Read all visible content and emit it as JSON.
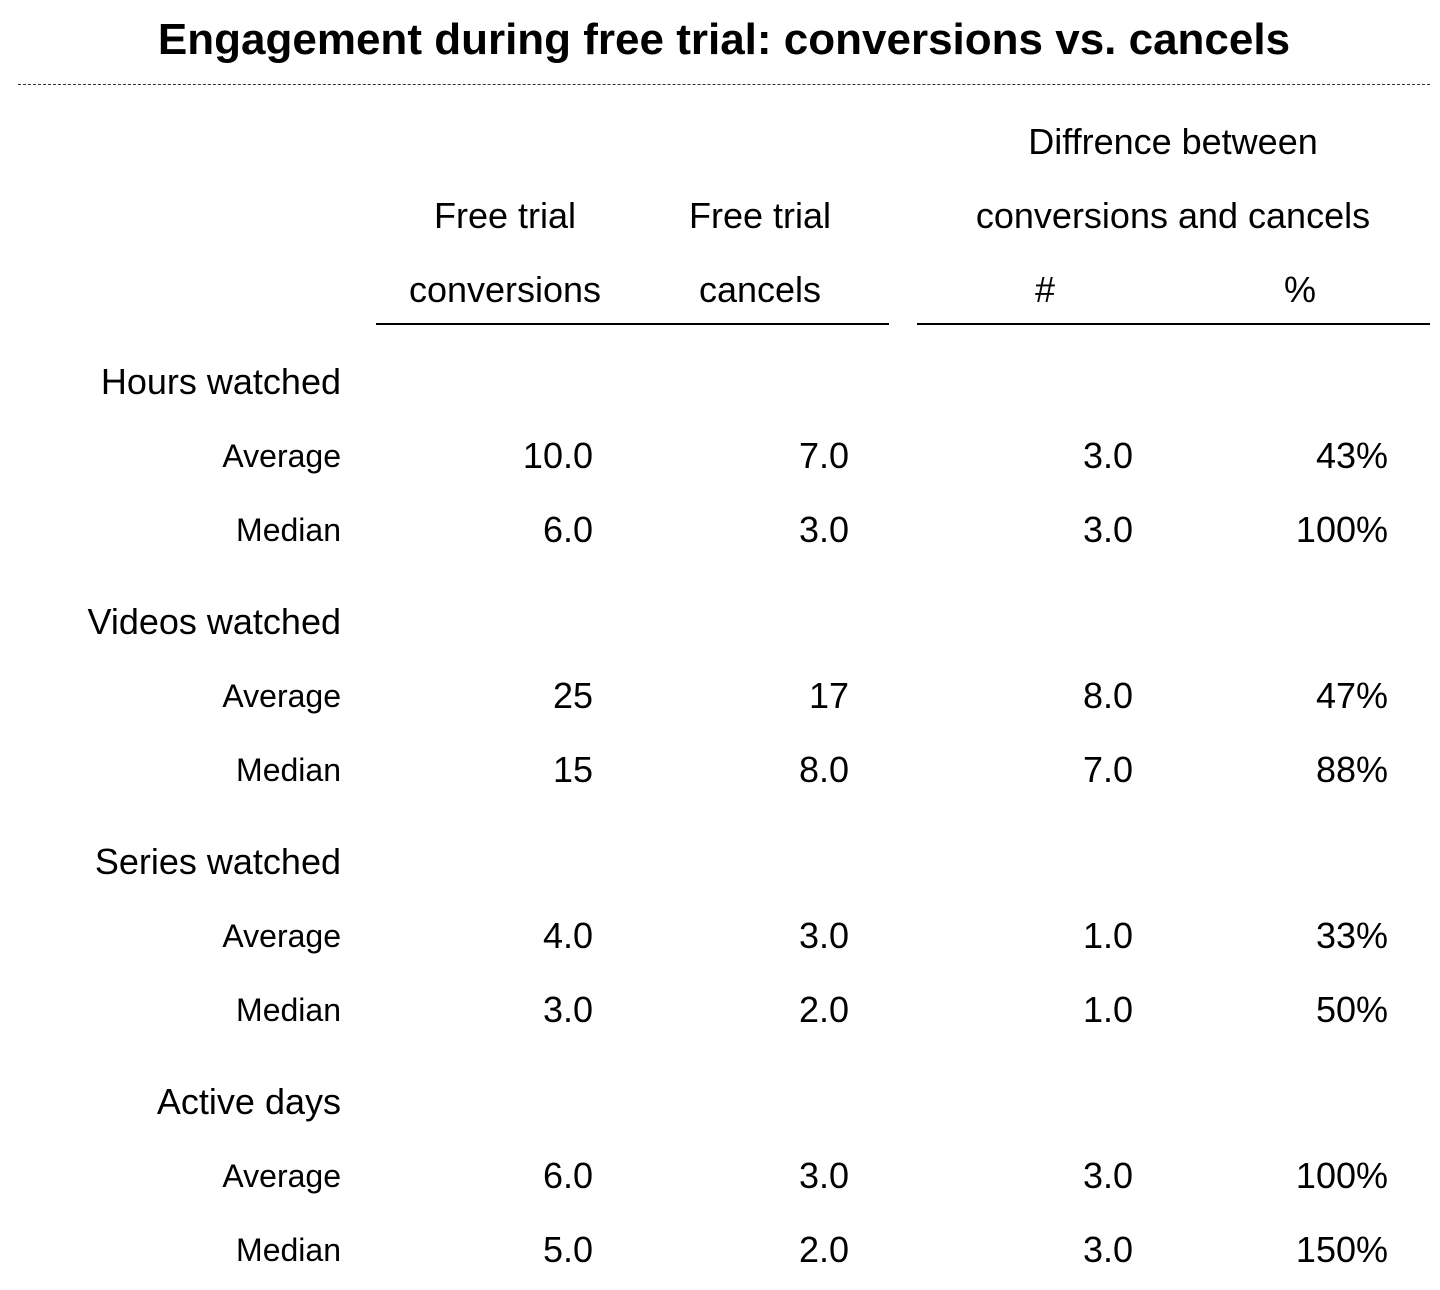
{
  "title": "Engagement during free trial: conversions vs. cancels",
  "headers": {
    "conversions_line1": "Free trial",
    "conversions_line2": "conversions",
    "cancels_line1": "Free trial",
    "cancels_line2": "cancels",
    "difference_line1": "Diffrence between",
    "difference_line2": "conversions and cancels",
    "diff_count": "#",
    "diff_pct": "%"
  },
  "groups": [
    {
      "label": "Hours watched",
      "rows": [
        {
          "label": "Average",
          "conversions": "10.0",
          "cancels": "7.0",
          "diff": "3.0",
          "pct": "43%"
        },
        {
          "label": "Median",
          "conversions": "6.0",
          "cancels": "3.0",
          "diff": "3.0",
          "pct": "100%"
        }
      ]
    },
    {
      "label": "Videos watched",
      "rows": [
        {
          "label": "Average",
          "conversions": "25",
          "cancels": "17",
          "diff": "8.0",
          "pct": "47%"
        },
        {
          "label": "Median",
          "conversions": "15",
          "cancels": "8.0",
          "diff": "7.0",
          "pct": "88%"
        }
      ]
    },
    {
      "label": "Series watched",
      "rows": [
        {
          "label": "Average",
          "conversions": "4.0",
          "cancels": "3.0",
          "diff": "1.0",
          "pct": "33%"
        },
        {
          "label": "Median",
          "conversions": "3.0",
          "cancels": "2.0",
          "diff": "1.0",
          "pct": "50%"
        }
      ]
    },
    {
      "label": "Active days",
      "rows": [
        {
          "label": "Average",
          "conversions": "6.0",
          "cancels": "3.0",
          "diff": "3.0",
          "pct": "100%"
        },
        {
          "label": "Median",
          "conversions": "5.0",
          "cancels": "2.0",
          "diff": "3.0",
          "pct": "150%"
        }
      ]
    }
  ]
}
